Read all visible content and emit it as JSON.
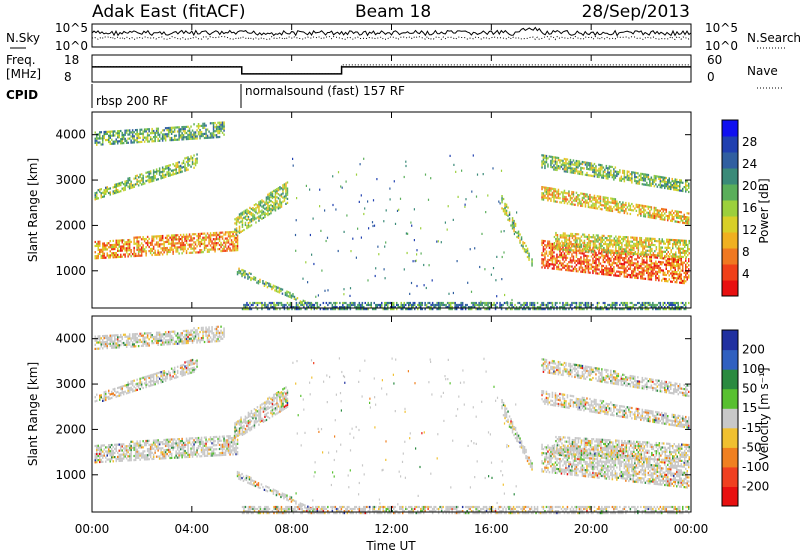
{
  "header": {
    "radar_name": "Adak East (fitACF)",
    "beam": "Beam 18",
    "date": "28/Sep/2013"
  },
  "sky_panel": {
    "left_label": "N.Sky",
    "right_label": "N.Search",
    "left_ticks": [
      "10^5",
      "10^0"
    ],
    "right_ticks": [
      "10^5",
      "10^0"
    ]
  },
  "freq_panel": {
    "left_label_line1": "Freq.",
    "left_label_line2": "[MHz]",
    "right_label": "Nave",
    "left_ticks": [
      "18",
      "8"
    ],
    "right_ticks": [
      "60",
      "0"
    ],
    "freq_steps_hours": [
      0,
      6,
      10,
      18,
      24
    ],
    "freq_levels_mhz": [
      13.6,
      11.0,
      13.6,
      13.6
    ],
    "nave_levels": [
      34,
      18,
      38,
      38
    ]
  },
  "cpid_panel": {
    "label": "CPID",
    "modes": [
      {
        "start_hour": 0,
        "text": "rbsp 200 RF"
      },
      {
        "start_hour": 6,
        "text": "normalsound (fast) 157 RF"
      }
    ]
  },
  "chart_data": [
    {
      "type": "heatmap",
      "name": "power",
      "ylabel": "Slant Range [km]",
      "xlabel": "Time UT",
      "xlim": [
        0,
        24
      ],
      "ylim": [
        180,
        4500
      ],
      "yticks": [
        "1000",
        "2000",
        "3000",
        "4000"
      ],
      "colorbar": {
        "label": "Power [dB]",
        "ticks": [
          "4",
          "8",
          "12",
          "16",
          "20",
          "24",
          "28"
        ],
        "colors": [
          "#1010f0",
          "#2040b0",
          "#305fa0",
          "#3a8a78",
          "#5aae5a",
          "#9cd03c",
          "#d8d028",
          "#f0b020",
          "#f07820",
          "#f04018",
          "#e81010"
        ]
      },
      "bands": [
        {
          "t0": 0.1,
          "t1": 5.8,
          "r0": 1300,
          "r1": 1700,
          "r1end": 1900,
          "level": 0.75
        },
        {
          "t0": 0.1,
          "t1": 4.2,
          "r0": 2600,
          "r1": 2800,
          "r1end": 3600,
          "level": 0.45
        },
        {
          "t0": 0.1,
          "t1": 5.3,
          "r0": 3800,
          "r1": 4100,
          "r1end": 4300,
          "level": 0.4
        },
        {
          "t0": 5.7,
          "t1": 7.8,
          "r0": 1800,
          "r1": 2200,
          "r1end": 3000,
          "level": 0.5
        },
        {
          "t0": 5.8,
          "t1": 9.0,
          "r0": 950,
          "r1": 1100,
          "r1end": 250,
          "level": 0.45
        },
        {
          "t0": 6.0,
          "t1": 23.9,
          "r0": 180,
          "r1": 350,
          "r1end": 350,
          "level": 0.3
        },
        {
          "t0": 16.4,
          "t1": 17.6,
          "r0": 2400,
          "r1": 2700,
          "r1end": 1300,
          "level": 0.5
        },
        {
          "t0": 18.0,
          "t1": 23.9,
          "r0": 1100,
          "r1": 1700,
          "r1end": 1300,
          "level": 0.85
        },
        {
          "t0": 18.0,
          "t1": 23.9,
          "r0": 2600,
          "r1": 2900,
          "r1end": 2300,
          "level": 0.65
        },
        {
          "t0": 18.0,
          "t1": 23.9,
          "r0": 3300,
          "r1": 3600,
          "r1end": 3000,
          "level": 0.45
        },
        {
          "t0": 18.5,
          "t1": 23.9,
          "r0": 1500,
          "r1": 1900,
          "r1end": 1700,
          "level": 0.6
        }
      ]
    },
    {
      "type": "heatmap",
      "name": "velocity",
      "ylabel": "Slant Range [km]",
      "xlabel": "Time UT",
      "xlim": [
        0,
        24
      ],
      "ylim": [
        180,
        4500
      ],
      "yticks": [
        "1000",
        "2000",
        "3000",
        "4000"
      ],
      "xticks": [
        "00:00",
        "04:00",
        "08:00",
        "12:00",
        "16:00",
        "20:00",
        "00:00"
      ],
      "colorbar": {
        "label": "Velocity [m s⁻¹]",
        "ticks": [
          "200",
          "100",
          "50",
          "15",
          "-15",
          "-50",
          "-100",
          "-200"
        ],
        "colors": [
          "#2030a0",
          "#3060c0",
          "#2a8a40",
          "#58c030",
          "#c8c8c8",
          "#f0c030",
          "#f08020",
          "#f04020",
          "#e81010"
        ]
      }
    }
  ]
}
